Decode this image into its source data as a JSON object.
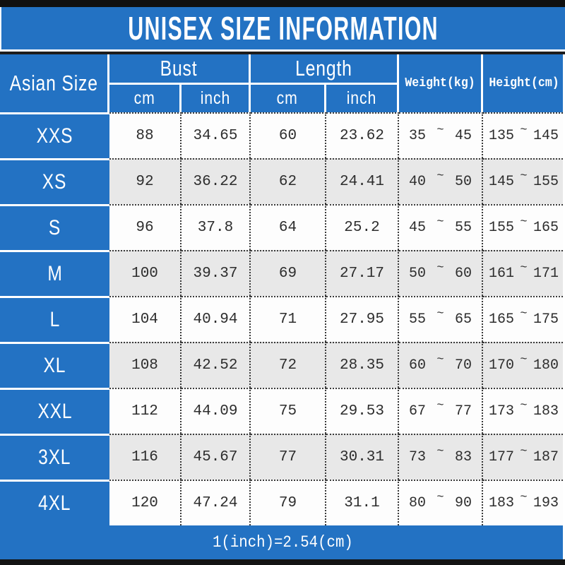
{
  "title": "UNISEX SIZE INFORMATION",
  "footer": "1(inch)=2.54(cm)",
  "tilde": "~",
  "table": {
    "header": {
      "asian_size": "Asian Size",
      "bust": "Bust",
      "length": "Length",
      "unit_cm": "cm",
      "unit_inch": "inch",
      "weight": "Weight(kg)",
      "height": "Height(cm)"
    },
    "rows": [
      {
        "size": "XXS",
        "bust_cm": "88",
        "bust_inch": "34.65",
        "length_cm": "60",
        "length_inch": "23.62",
        "weight_min": "35",
        "weight_max": "45",
        "height_min": "135",
        "height_max": "145"
      },
      {
        "size": "XS",
        "bust_cm": "92",
        "bust_inch": "36.22",
        "length_cm": "62",
        "length_inch": "24.41",
        "weight_min": "40",
        "weight_max": "50",
        "height_min": "145",
        "height_max": "155"
      },
      {
        "size": "S",
        "bust_cm": "96",
        "bust_inch": "37.8",
        "length_cm": "64",
        "length_inch": "25.2",
        "weight_min": "45",
        "weight_max": "55",
        "height_min": "155",
        "height_max": "165"
      },
      {
        "size": "M",
        "bust_cm": "100",
        "bust_inch": "39.37",
        "length_cm": "69",
        "length_inch": "27.17",
        "weight_min": "50",
        "weight_max": "60",
        "height_min": "161",
        "height_max": "171"
      },
      {
        "size": "L",
        "bust_cm": "104",
        "bust_inch": "40.94",
        "length_cm": "71",
        "length_inch": "27.95",
        "weight_min": "55",
        "weight_max": "65",
        "height_min": "165",
        "height_max": "175"
      },
      {
        "size": "XL",
        "bust_cm": "108",
        "bust_inch": "42.52",
        "length_cm": "72",
        "length_inch": "28.35",
        "weight_min": "60",
        "weight_max": "70",
        "height_min": "170",
        "height_max": "180"
      },
      {
        "size": "XXL",
        "bust_cm": "112",
        "bust_inch": "44.09",
        "length_cm": "75",
        "length_inch": "29.53",
        "weight_min": "67",
        "weight_max": "77",
        "height_min": "173",
        "height_max": "183"
      },
      {
        "size": "3XL",
        "bust_cm": "116",
        "bust_inch": "45.67",
        "length_cm": "77",
        "length_inch": "30.31",
        "weight_min": "73",
        "weight_max": "83",
        "height_min": "177",
        "height_max": "187"
      },
      {
        "size": "4XL",
        "bust_cm": "120",
        "bust_inch": "47.24",
        "length_cm": "79",
        "length_inch": "31.1",
        "weight_min": "80",
        "weight_max": "90",
        "height_min": "183",
        "height_max": "193"
      }
    ]
  },
  "colors": {
    "blue": "#2372c3",
    "row_white": "#fdfdfd",
    "row_gray": "#e8e8e8",
    "text_dark": "#2d2d2d",
    "bar_black": "#141414",
    "border_white": "#ffffff",
    "dotted_border": "#3a3a3a"
  }
}
